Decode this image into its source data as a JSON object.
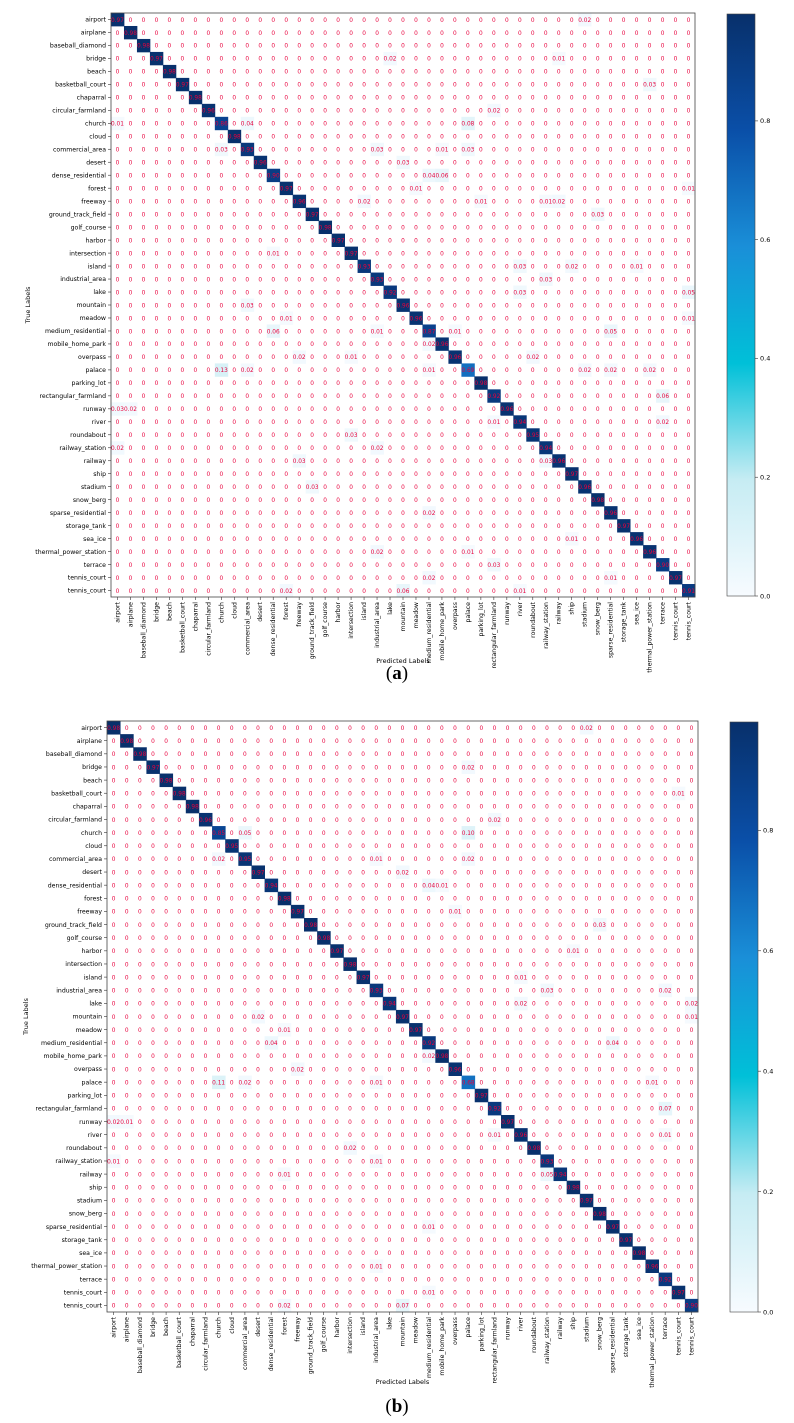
{
  "chart_data": [
    {
      "type": "heatmap",
      "panel_label": "a",
      "xlabel": "Predicted Labels",
      "ylabel": "True Labels",
      "colorscale": [
        "#f7fbff",
        "#c6ecf3",
        "#00c0d8",
        "#1a8fd8",
        "#0a4fa8",
        "#08306b"
      ],
      "colorbar_ticks": [
        "0.0",
        "0.2",
        "0.4",
        "0.6",
        "0.8"
      ],
      "colorbar_tick_values": [
        0,
        0.2,
        0.4,
        0.6,
        0.8
      ],
      "colorbar_range": [
        0,
        0.98
      ],
      "value_text_color": "#e8003c",
      "labels": [
        "airport",
        "airplane",
        "baseball_diamond",
        "bridge",
        "beach",
        "basketball_court",
        "chaparral",
        "circular_farmland",
        "church",
        "cloud",
        "commercial_area",
        "desert",
        "dense_residential",
        "forest",
        "freeway",
        "ground_track_field",
        "golf_course",
        "harbor",
        "intersection",
        "island",
        "industrial_area",
        "lake",
        "mountain",
        "meadow",
        "medium_residential",
        "mobile_home_park",
        "overpass",
        "palace",
        "parking_lot",
        "rectangular_farmland",
        "runway",
        "river",
        "roundabout",
        "railway_station",
        "railway",
        "ship",
        "stadium",
        "snow_berg",
        "sparse_residential",
        "storage_tank",
        "sea_ice",
        "thermal_power_station",
        "terrace",
        "tennis_court",
        "tennis_court"
      ],
      "diagonal": [
        0.97,
        0.98,
        0.98,
        0.97,
        0.98,
        0.97,
        0.98,
        0.96,
        0.86,
        0.98,
        0.93,
        0.96,
        0.9,
        0.97,
        0.96,
        0.97,
        0.98,
        0.97,
        0.97,
        0.93,
        0.93,
        0.92,
        0.96,
        0.96,
        0.87,
        0.96,
        0.96,
        0.69,
        0.98,
        0.92,
        0.96,
        0.94,
        0.95,
        0.94,
        0.96,
        0.97,
        0.96,
        0.98,
        0.96,
        0.97,
        0.96,
        0.96,
        0.9,
        0.97,
        0.91
      ],
      "off_diagonal": [
        [
          0,
          36,
          0.02
        ],
        [
          3,
          21,
          0.02
        ],
        [
          3,
          34,
          0.01
        ],
        [
          5,
          41,
          0.03
        ],
        [
          7,
          29,
          0.02
        ],
        [
          8,
          0,
          0.01
        ],
        [
          8,
          10,
          0.04
        ],
        [
          8,
          27,
          0.08
        ],
        [
          10,
          8,
          0.03
        ],
        [
          10,
          20,
          0.03
        ],
        [
          10,
          25,
          0.01
        ],
        [
          10,
          27,
          0.03
        ],
        [
          11,
          22,
          0.03
        ],
        [
          12,
          24,
          0.04
        ],
        [
          12,
          25,
          0.06
        ],
        [
          13,
          23,
          0.01
        ],
        [
          13,
          44,
          0.01
        ],
        [
          14,
          19,
          0.02
        ],
        [
          14,
          28,
          0.01
        ],
        [
          14,
          33,
          0.01
        ],
        [
          14,
          34,
          0.02
        ],
        [
          15,
          37,
          0.03
        ],
        [
          18,
          12,
          0.01
        ],
        [
          19,
          31,
          0.03
        ],
        [
          19,
          35,
          0.02
        ],
        [
          19,
          40,
          0.01
        ],
        [
          20,
          33,
          0.03
        ],
        [
          21,
          31,
          0.03
        ],
        [
          21,
          44,
          0.05
        ],
        [
          22,
          10,
          0.03
        ],
        [
          23,
          13,
          0.01
        ],
        [
          23,
          44,
          0.01
        ],
        [
          24,
          12,
          0.06
        ],
        [
          24,
          20,
          0.01
        ],
        [
          24,
          26,
          0.01
        ],
        [
          24,
          38,
          0.05
        ],
        [
          25,
          24,
          0.02
        ],
        [
          26,
          14,
          0.02
        ],
        [
          26,
          18,
          0.01
        ],
        [
          26,
          32,
          0.02
        ],
        [
          27,
          8,
          0.13
        ],
        [
          27,
          10,
          0.02
        ],
        [
          27,
          24,
          0.01
        ],
        [
          27,
          36,
          0.02
        ],
        [
          27,
          38,
          0.02
        ],
        [
          27,
          41,
          0.02
        ],
        [
          29,
          42,
          0.06
        ],
        [
          30,
          0,
          0.03
        ],
        [
          30,
          1,
          0.02
        ],
        [
          31,
          29,
          0.01
        ],
        [
          31,
          42,
          0.02
        ],
        [
          32,
          18,
          0.03
        ],
        [
          33,
          0,
          0.02
        ],
        [
          33,
          20,
          0.02
        ],
        [
          34,
          14,
          0.03
        ],
        [
          34,
          33,
          0.03
        ],
        [
          36,
          15,
          0.03
        ],
        [
          38,
          24,
          0.02
        ],
        [
          40,
          35,
          0.01
        ],
        [
          41,
          20,
          0.02
        ],
        [
          41,
          27,
          0.01
        ],
        [
          42,
          29,
          0.03
        ],
        [
          43,
          24,
          0.02
        ],
        [
          43,
          38,
          0.01
        ],
        [
          44,
          13,
          0.02
        ],
        [
          44,
          22,
          0.06
        ],
        [
          44,
          31,
          0.01
        ]
      ]
    },
    {
      "type": "heatmap",
      "panel_label": "b",
      "xlabel": "Predicted Labels",
      "ylabel": "True Labels",
      "colorscale": [
        "#f7fbff",
        "#c6ecf3",
        "#00c0d8",
        "#1a8fd8",
        "#0a4fa8",
        "#08306b"
      ],
      "colorbar_ticks": [
        "0.0",
        "0.2",
        "0.4",
        "0.6",
        "0.8"
      ],
      "colorbar_tick_values": [
        0,
        0.2,
        0.4,
        0.6,
        0.8
      ],
      "colorbar_range": [
        0,
        0.98
      ],
      "value_text_color": "#e8003c",
      "labels": [
        "airport",
        "airplane",
        "baseball_diamond",
        "bridge",
        "beach",
        "basketball_court",
        "chaparral",
        "circular_farmland",
        "church",
        "cloud",
        "commercial_area",
        "desert",
        "dense_residential",
        "forest",
        "freeway",
        "ground_track_field",
        "golf_course",
        "harbor",
        "intersection",
        "island",
        "industrial_area",
        "lake",
        "mountain",
        "meadow",
        "medium_residential",
        "mobile_home_park",
        "overpass",
        "palace",
        "parking_lot",
        "rectangular_farmland",
        "runway",
        "river",
        "roundabout",
        "railway_station",
        "railway",
        "ship",
        "stadium",
        "snow_berg",
        "sparse_residential",
        "storage_tank",
        "sea_ice",
        "thermal_power_station",
        "terrace",
        "tennis_court",
        "tennis_court"
      ],
      "diagonal": [
        0.98,
        0.98,
        0.98,
        0.97,
        0.98,
        0.98,
        0.98,
        0.96,
        0.85,
        0.95,
        0.95,
        0.97,
        0.94,
        0.98,
        0.97,
        0.98,
        0.98,
        0.97,
        0.98,
        0.97,
        0.93,
        0.94,
        0.97,
        0.97,
        0.92,
        0.98,
        0.96,
        0.68,
        0.97,
        0.92,
        0.97,
        0.96,
        0.98,
        0.93,
        0.94,
        0.98,
        0.97,
        0.98,
        0.97,
        0.97,
        0.98,
        0.96,
        0.92,
        0.97,
        0.9
      ],
      "off_diagonal": [
        [
          0,
          36,
          0.02
        ],
        [
          3,
          27,
          0.02
        ],
        [
          5,
          43,
          0.01
        ],
        [
          7,
          29,
          0.02
        ],
        [
          8,
          10,
          0.05
        ],
        [
          8,
          27,
          0.1
        ],
        [
          10,
          8,
          0.02
        ],
        [
          10,
          20,
          0.01
        ],
        [
          10,
          27,
          0.02
        ],
        [
          11,
          22,
          0.02
        ],
        [
          12,
          24,
          0.04
        ],
        [
          12,
          25,
          0.01
        ],
        [
          14,
          26,
          0.01
        ],
        [
          15,
          37,
          0.03
        ],
        [
          17,
          35,
          0.01
        ],
        [
          19,
          31,
          0.01
        ],
        [
          20,
          33,
          0.03
        ],
        [
          20,
          42,
          0.02
        ],
        [
          21,
          31,
          0.02
        ],
        [
          21,
          44,
          0.02
        ],
        [
          22,
          11,
          0.02
        ],
        [
          22,
          44,
          0.01
        ],
        [
          23,
          13,
          0.01
        ],
        [
          24,
          12,
          0.04
        ],
        [
          24,
          38,
          0.04
        ],
        [
          25,
          24,
          0.02
        ],
        [
          26,
          14,
          0.02
        ],
        [
          27,
          8,
          0.11
        ],
        [
          27,
          10,
          0.02
        ],
        [
          27,
          20,
          0.01
        ],
        [
          27,
          41,
          0.01
        ],
        [
          29,
          42,
          0.07
        ],
        [
          30,
          0,
          0.02
        ],
        [
          30,
          1,
          0.01
        ],
        [
          31,
          29,
          0.01
        ],
        [
          31,
          42,
          0.01
        ],
        [
          32,
          18,
          0.02
        ],
        [
          33,
          0,
          0.01
        ],
        [
          33,
          20,
          0.01
        ],
        [
          34,
          13,
          0.01
        ],
        [
          34,
          33,
          0.05
        ],
        [
          38,
          24,
          0.01
        ],
        [
          41,
          20,
          0.01
        ],
        [
          43,
          24,
          0.01
        ],
        [
          44,
          13,
          0.02
        ],
        [
          44,
          22,
          0.07
        ]
      ]
    }
  ],
  "captions": [
    {
      "open": "(",
      "label": "a",
      "close": ")"
    },
    {
      "open": "(",
      "label": "b",
      "close": ")"
    }
  ]
}
